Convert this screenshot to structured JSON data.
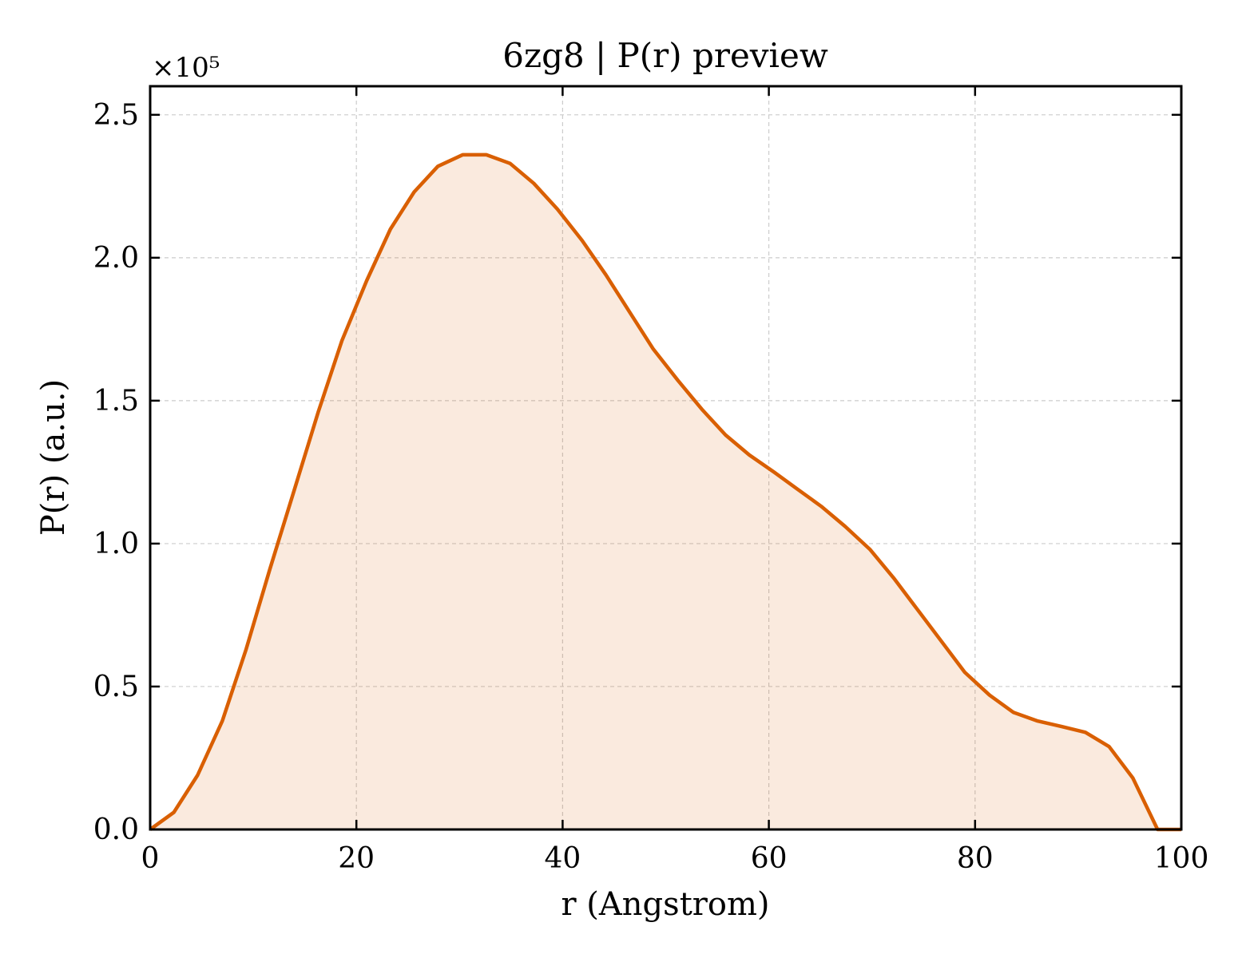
{
  "chart_data": {
    "type": "area",
    "title": "6zg8 | P(r) preview",
    "xlabel": "r (Angstrom)",
    "ylabel": "P(r) (a.u.)",
    "y_multiplier_label": "×10⁵",
    "xlim": [
      0,
      100
    ],
    "ylim": [
      0,
      2.6
    ],
    "xticks": [
      "0",
      "20",
      "40",
      "60",
      "80",
      "100"
    ],
    "yticks": [
      "0.0",
      "0.5",
      "1.0",
      "1.5",
      "2.0",
      "2.5"
    ],
    "grid": true,
    "legend": "none",
    "series": [
      {
        "color": "#d95f02",
        "fill_color": "#d95f02",
        "x": [
          0,
          2.3,
          4.6,
          7.0,
          9.3,
          11.6,
          14.0,
          16.3,
          18.6,
          21.0,
          23.3,
          25.6,
          27.9,
          30.3,
          32.6,
          34.9,
          37.2,
          39.5,
          41.9,
          44.2,
          46.5,
          48.8,
          51.2,
          53.5,
          55.8,
          58.1,
          60.5,
          62.8,
          65.1,
          67.4,
          69.8,
          72.1,
          74.4,
          76.7,
          79.0,
          81.4,
          83.7,
          86.0,
          88.4,
          90.7,
          93.0,
          95.3,
          97.7,
          100.0
        ],
        "y": [
          0.0,
          0.06,
          0.19,
          0.38,
          0.63,
          0.91,
          1.19,
          1.46,
          1.71,
          1.92,
          2.1,
          2.23,
          2.32,
          2.36,
          2.36,
          2.33,
          2.26,
          2.17,
          2.06,
          1.94,
          1.81,
          1.68,
          1.57,
          1.47,
          1.38,
          1.31,
          1.25,
          1.19,
          1.13,
          1.06,
          0.98,
          0.88,
          0.77,
          0.66,
          0.55,
          0.47,
          0.41,
          0.38,
          0.36,
          0.34,
          0.29,
          0.18,
          0.0,
          0.0
        ]
      }
    ]
  }
}
